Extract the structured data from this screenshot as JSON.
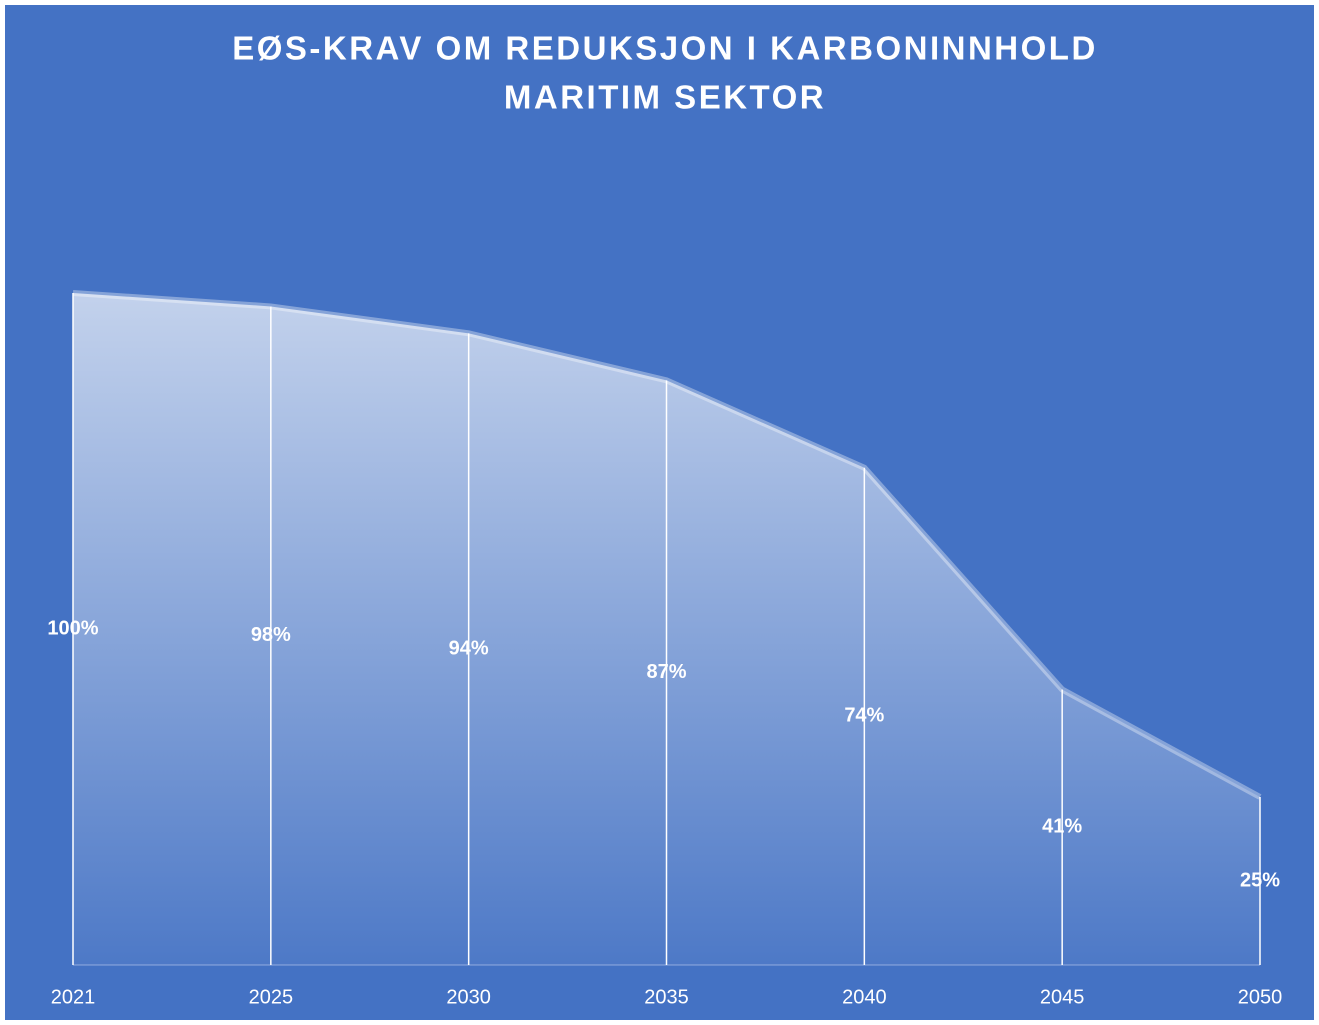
{
  "chart_data": {
    "type": "area",
    "title": [
      "EØS-KRAV OM REDUKSJON I KARBONINNHOLD",
      "MARITIM SEKTOR"
    ],
    "categories": [
      "2021",
      "2025",
      "2030",
      "2035",
      "2040",
      "2045",
      "2050"
    ],
    "values": [
      100,
      98,
      94,
      87,
      74,
      41,
      25
    ],
    "value_labels": [
      "100%",
      "98%",
      "94%",
      "87%",
      "74%",
      "41%",
      "25%"
    ],
    "color": "#4472c4"
  }
}
